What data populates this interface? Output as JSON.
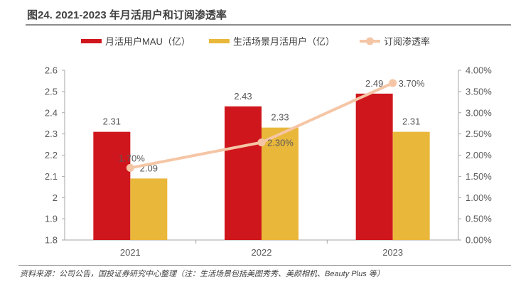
{
  "title": "图24. 2021-2023 年月活用户和订阅渗透率",
  "footer": "资料来源：公司公告，国投证券研究中心整理（注：生活场景包括美图秀秀、美颜相机、Beauty Plus 等）",
  "chart_data": {
    "type": "bar",
    "title": "图24. 2021-2023 年月活用户和订阅渗透率",
    "categories": [
      "2021",
      "2022",
      "2023"
    ],
    "series": [
      {
        "name": "月活用户MAU（亿）",
        "type": "bar",
        "axis": "left",
        "color": "#D0161D",
        "values": [
          2.31,
          2.43,
          2.49
        ],
        "labels": [
          "2.31",
          "2.43",
          "2.49"
        ]
      },
      {
        "name": "生活场景月活用户（亿）",
        "type": "bar",
        "axis": "left",
        "color": "#E9B73A",
        "values": [
          2.09,
          2.33,
          2.31
        ],
        "labels": [
          "2.09",
          "2.33",
          "2.31"
        ]
      },
      {
        "name": "订阅渗透率",
        "type": "line",
        "axis": "right",
        "color": "#F5C6A6",
        "values": [
          0.017,
          0.023,
          0.037
        ],
        "labels": [
          "1.70%",
          "2.30%",
          "3.70%"
        ]
      }
    ],
    "y_left": {
      "min": 1.8,
      "max": 2.6,
      "ticks": [
        "1.8",
        "1.9",
        "2",
        "2.1",
        "2.2",
        "2.3",
        "2.4",
        "2.5",
        "2.6"
      ]
    },
    "y_right": {
      "min": 0,
      "max": 0.04,
      "ticks": [
        "0.00%",
        "0.50%",
        "1.00%",
        "1.50%",
        "2.00%",
        "2.50%",
        "3.00%",
        "3.50%",
        "4.00%"
      ]
    },
    "xlabel": "",
    "ylabel": "",
    "grid": false,
    "legend_position": "top-center"
  }
}
